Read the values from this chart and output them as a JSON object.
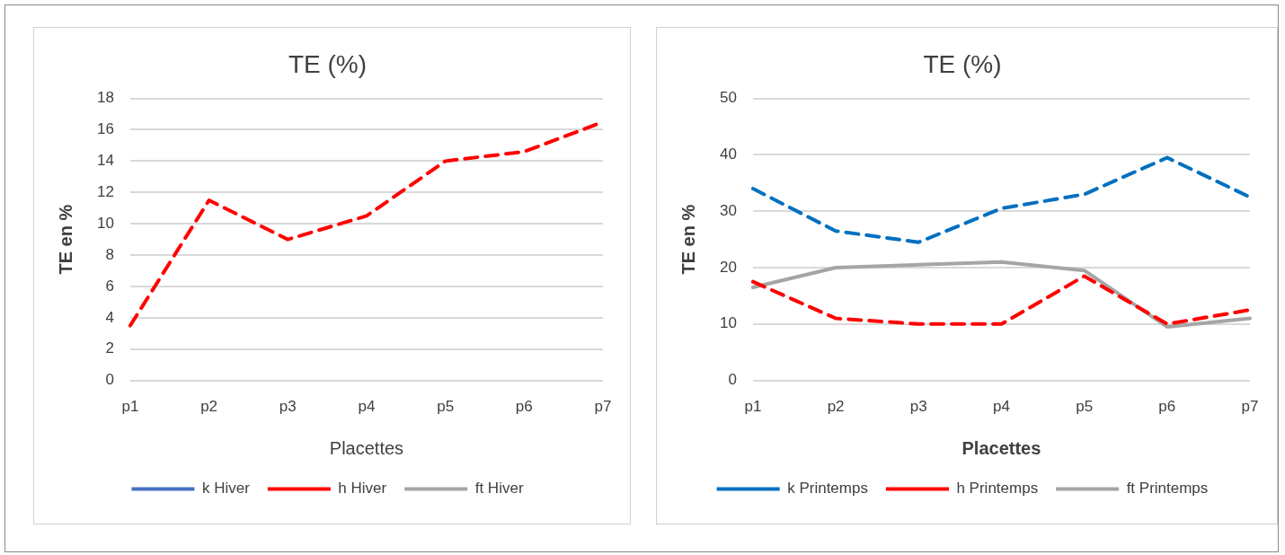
{
  "chart_data": [
    {
      "type": "line",
      "title": "TE (%)",
      "xlabel": "Placettes",
      "ylabel": "TE en %",
      "categories": [
        "p1",
        "p2",
        "p3",
        "p4",
        "p5",
        "p6",
        "p7"
      ],
      "ylim": [
        0,
        18
      ],
      "yticks": [
        0,
        2,
        4,
        6,
        8,
        10,
        12,
        14,
        16,
        18
      ],
      "grid": "y",
      "legend": "bottom",
      "marker": "none",
      "series": [
        {
          "name": "k Hiver",
          "color": "#4472c4",
          "line_style": "solid",
          "values": [
            null,
            null,
            null,
            null,
            null,
            null,
            null
          ]
        },
        {
          "name": "h Hiver",
          "color": "#ff0000",
          "line_style": "dashed",
          "values": [
            3.5,
            11.5,
            9,
            10.5,
            14,
            14.6,
            16.5
          ]
        },
        {
          "name": "ft Hiver",
          "color": "#a5a5a5",
          "line_style": "solid",
          "values": [
            null,
            null,
            null,
            null,
            null,
            null,
            null
          ]
        }
      ]
    },
    {
      "type": "line",
      "title": "TE (%)",
      "xlabel": "Placettes",
      "ylabel": "TE en %",
      "categories": [
        "p1",
        "p2",
        "p3",
        "p4",
        "p5",
        "p6",
        "p7"
      ],
      "ylim": [
        0,
        50
      ],
      "yticks": [
        0,
        10,
        20,
        30,
        40,
        50
      ],
      "grid": "y",
      "legend": "bottom",
      "marker": "none",
      "series": [
        {
          "name": "k Printemps",
          "color": "#0070c0",
          "line_style": "dashed",
          "values": [
            34,
            26.5,
            24.5,
            30.5,
            33,
            39.5,
            32.5
          ]
        },
        {
          "name": "h Printemps",
          "color": "#ff0000",
          "line_style": "dashed",
          "values": [
            17.5,
            11,
            10,
            10,
            18.5,
            10,
            12.5
          ]
        },
        {
          "name": "ft Printemps",
          "color": "#a5a5a5",
          "line_style": "solid",
          "values": [
            16.5,
            20,
            20.5,
            21,
            19.5,
            9.5,
            11
          ]
        }
      ]
    }
  ]
}
